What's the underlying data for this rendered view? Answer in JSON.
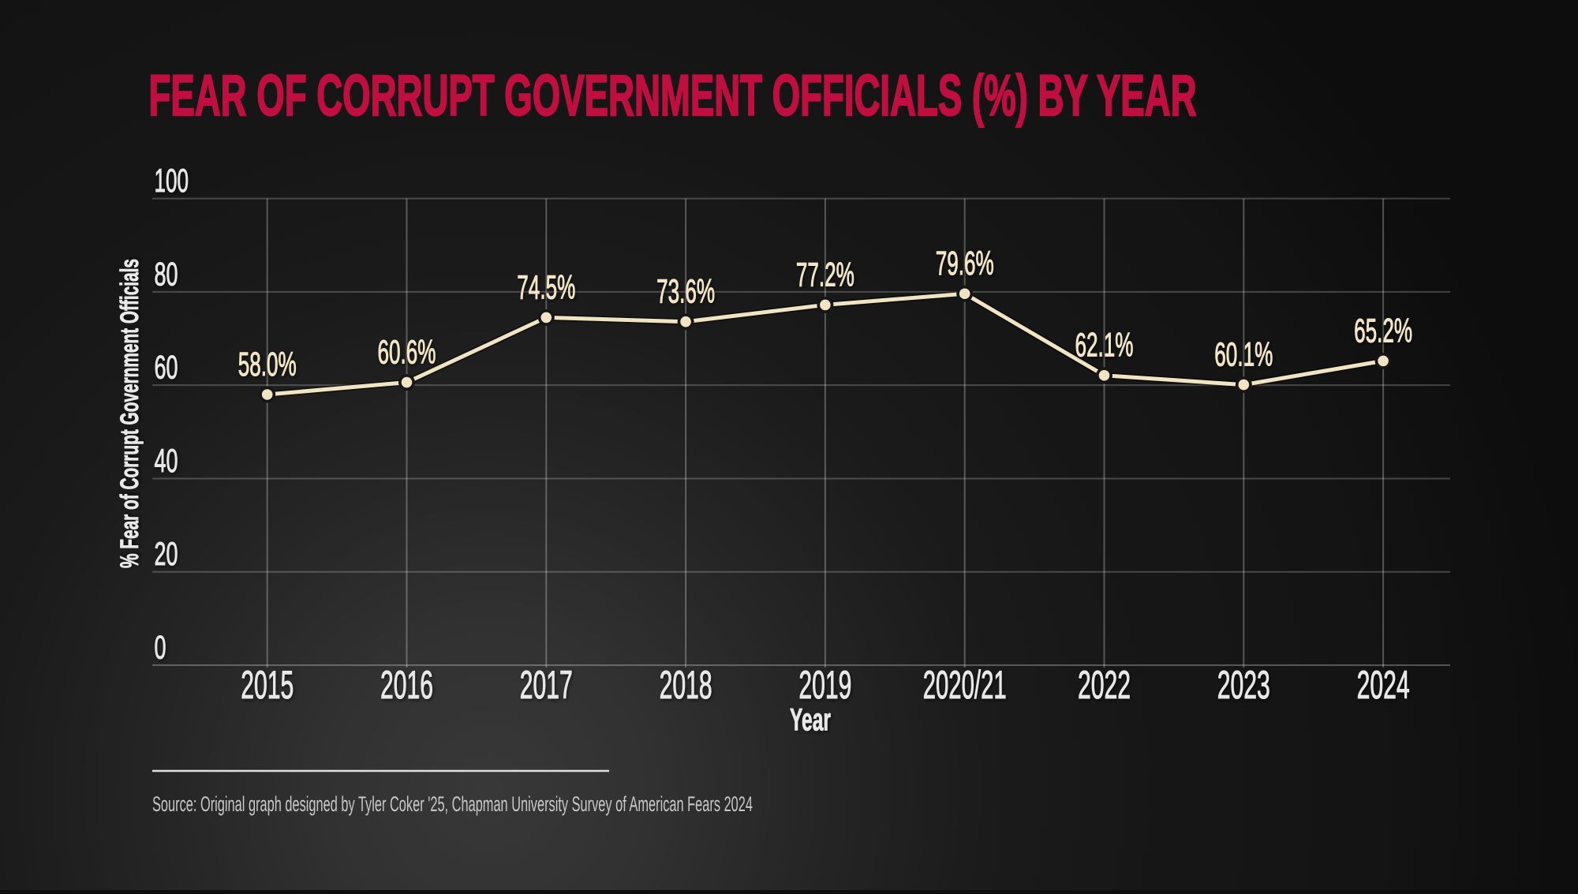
{
  "chart_data": {
    "type": "line",
    "title": "FEAR OF CORRUPT GOVERNMENT OFFICIALS (%) BY YEAR",
    "xlabel": "Year",
    "ylabel": "% Fear of Corrupt Government Officials",
    "categories": [
      "2015",
      "2016",
      "2017",
      "2018",
      "2019",
      "2020/21",
      "2022",
      "2023",
      "2024"
    ],
    "values": [
      58.0,
      60.6,
      74.5,
      73.6,
      77.2,
      79.6,
      62.1,
      60.1,
      65.2
    ],
    "point_labels": [
      "58.0%",
      "60.6%",
      "74.5%",
      "73.6%",
      "77.2%",
      "79.6%",
      "62.1%",
      "60.1%",
      "65.2%"
    ],
    "ylim": [
      0,
      100
    ],
    "yticks": [
      0,
      20,
      40,
      60,
      80,
      100
    ],
    "grid": true,
    "legend": false
  },
  "source": {
    "text": "Source: Original graph designed by Tyler Coker '25, Chapman University Survey of American Fears 2024"
  },
  "colors": {
    "title": "#bf0e3f",
    "series": "#f0e4c2",
    "point_label": "#f2e6c6",
    "marker_ring": "#161616",
    "tick_text": "#e8e8e8",
    "axis_title_text": "#e9e9e9",
    "source_text": "#c9c9c9",
    "divider": "#e0e0e0",
    "grid": "#ffffff",
    "background_center": "#3a3a3a",
    "background_edge": "#0c0c0c"
  }
}
